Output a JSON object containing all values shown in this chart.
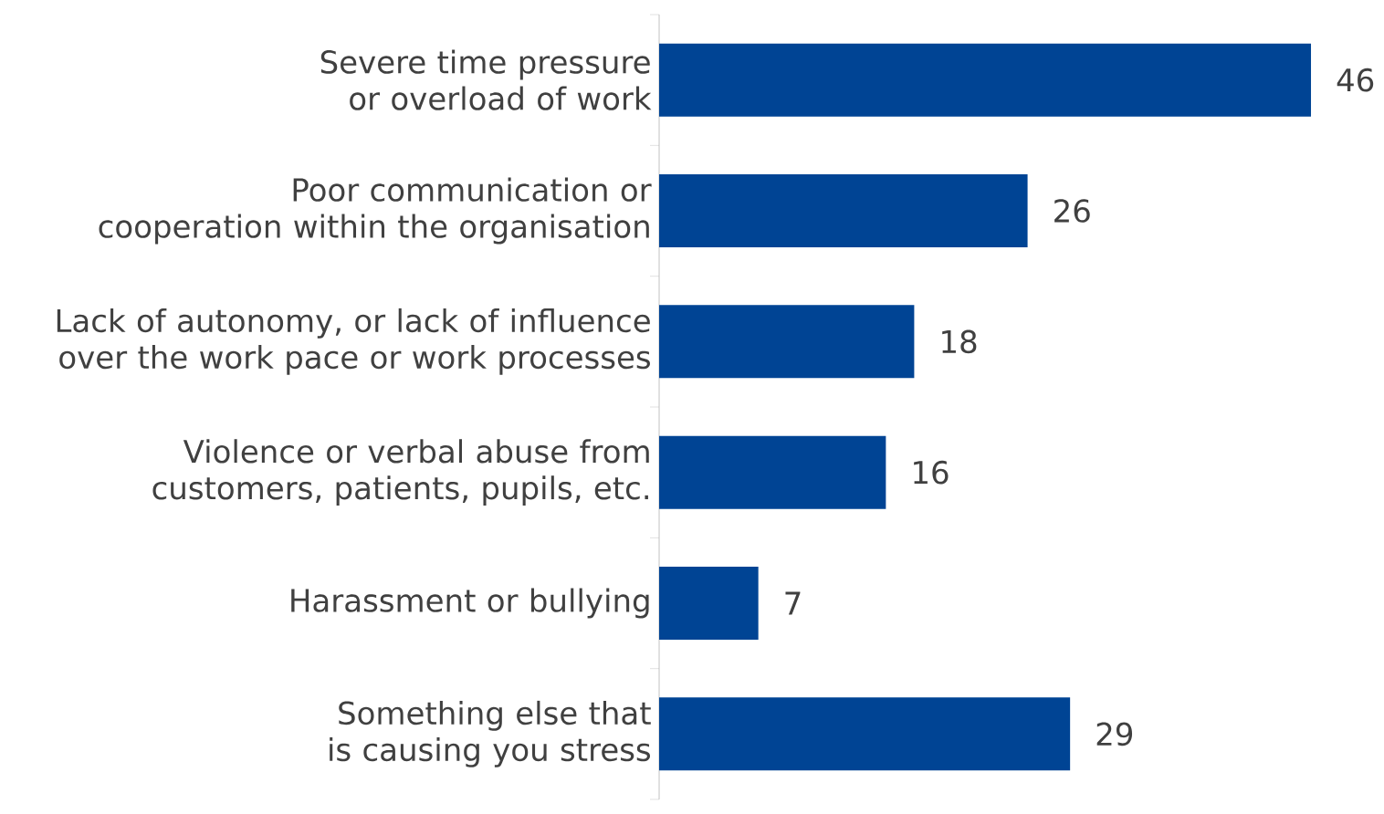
{
  "chart_data": {
    "type": "bar",
    "orientation": "horizontal",
    "color": "#004494",
    "data_labels": true,
    "categories": [
      "Severe time pressure or overload of work",
      "Poor communication or cooperation within the organisation",
      "Lack of autonomy, or lack of influence over the work pace or work processes",
      "Violence or verbal abuse from customers, patients, pupils, etc.",
      "Harassment or bullying",
      "Something else that is causing you stress"
    ],
    "values": [
      46,
      26,
      18,
      16,
      7,
      29
    ]
  }
}
